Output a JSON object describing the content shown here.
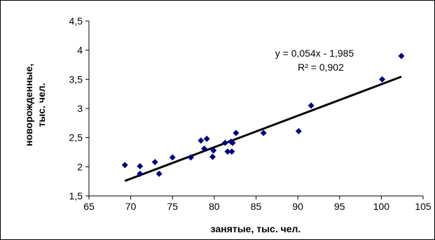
{
  "chart_data": {
    "type": "scatter",
    "title": "",
    "xlabel": "занятые, тыс. чел.",
    "ylabel_lines": [
      "новорожденные,",
      "тыс. чел."
    ],
    "xlim": [
      65,
      105
    ],
    "ylim": [
      1.5,
      4.5
    ],
    "xticks": [
      65,
      70,
      75,
      80,
      85,
      90,
      95,
      100,
      105
    ],
    "yticks": [
      1.5,
      2,
      2.5,
      3,
      3.5,
      4,
      4.5
    ],
    "xtick_labels": [
      "65",
      "70",
      "75",
      "80",
      "85",
      "90",
      "95",
      "100",
      "105"
    ],
    "ytick_labels": [
      "1,5",
      "2",
      "2,5",
      "3",
      "3,5",
      "4",
      "4,5"
    ],
    "grid": false,
    "legend": "none",
    "marker_color": "#000080",
    "points": [
      {
        "x": 69.3,
        "y": 2.03
      },
      {
        "x": 71.1,
        "y": 2.01
      },
      {
        "x": 71.1,
        "y": 1.88
      },
      {
        "x": 72.9,
        "y": 2.08
      },
      {
        "x": 73.4,
        "y": 1.88
      },
      {
        "x": 75.0,
        "y": 2.16
      },
      {
        "x": 77.2,
        "y": 2.16
      },
      {
        "x": 78.4,
        "y": 2.45
      },
      {
        "x": 78.8,
        "y": 2.31
      },
      {
        "x": 79.1,
        "y": 2.48
      },
      {
        "x": 79.8,
        "y": 2.17
      },
      {
        "x": 79.9,
        "y": 2.28
      },
      {
        "x": 81.3,
        "y": 2.41
      },
      {
        "x": 81.6,
        "y": 2.26
      },
      {
        "x": 82.0,
        "y": 2.43
      },
      {
        "x": 82.1,
        "y": 2.26
      },
      {
        "x": 82.2,
        "y": 2.41
      },
      {
        "x": 82.6,
        "y": 2.58
      },
      {
        "x": 85.9,
        "y": 2.58
      },
      {
        "x": 90.1,
        "y": 2.61
      },
      {
        "x": 91.6,
        "y": 3.05
      },
      {
        "x": 100.1,
        "y": 3.5
      },
      {
        "x": 102.4,
        "y": 3.9
      }
    ],
    "trendline": {
      "slope": 0.054,
      "intercept": -1.985,
      "x_start": 69.3,
      "x_end": 102.4,
      "color": "#000000",
      "equation": "y = 0,054x - 1,985",
      "r2": "R² = 0,902"
    }
  }
}
